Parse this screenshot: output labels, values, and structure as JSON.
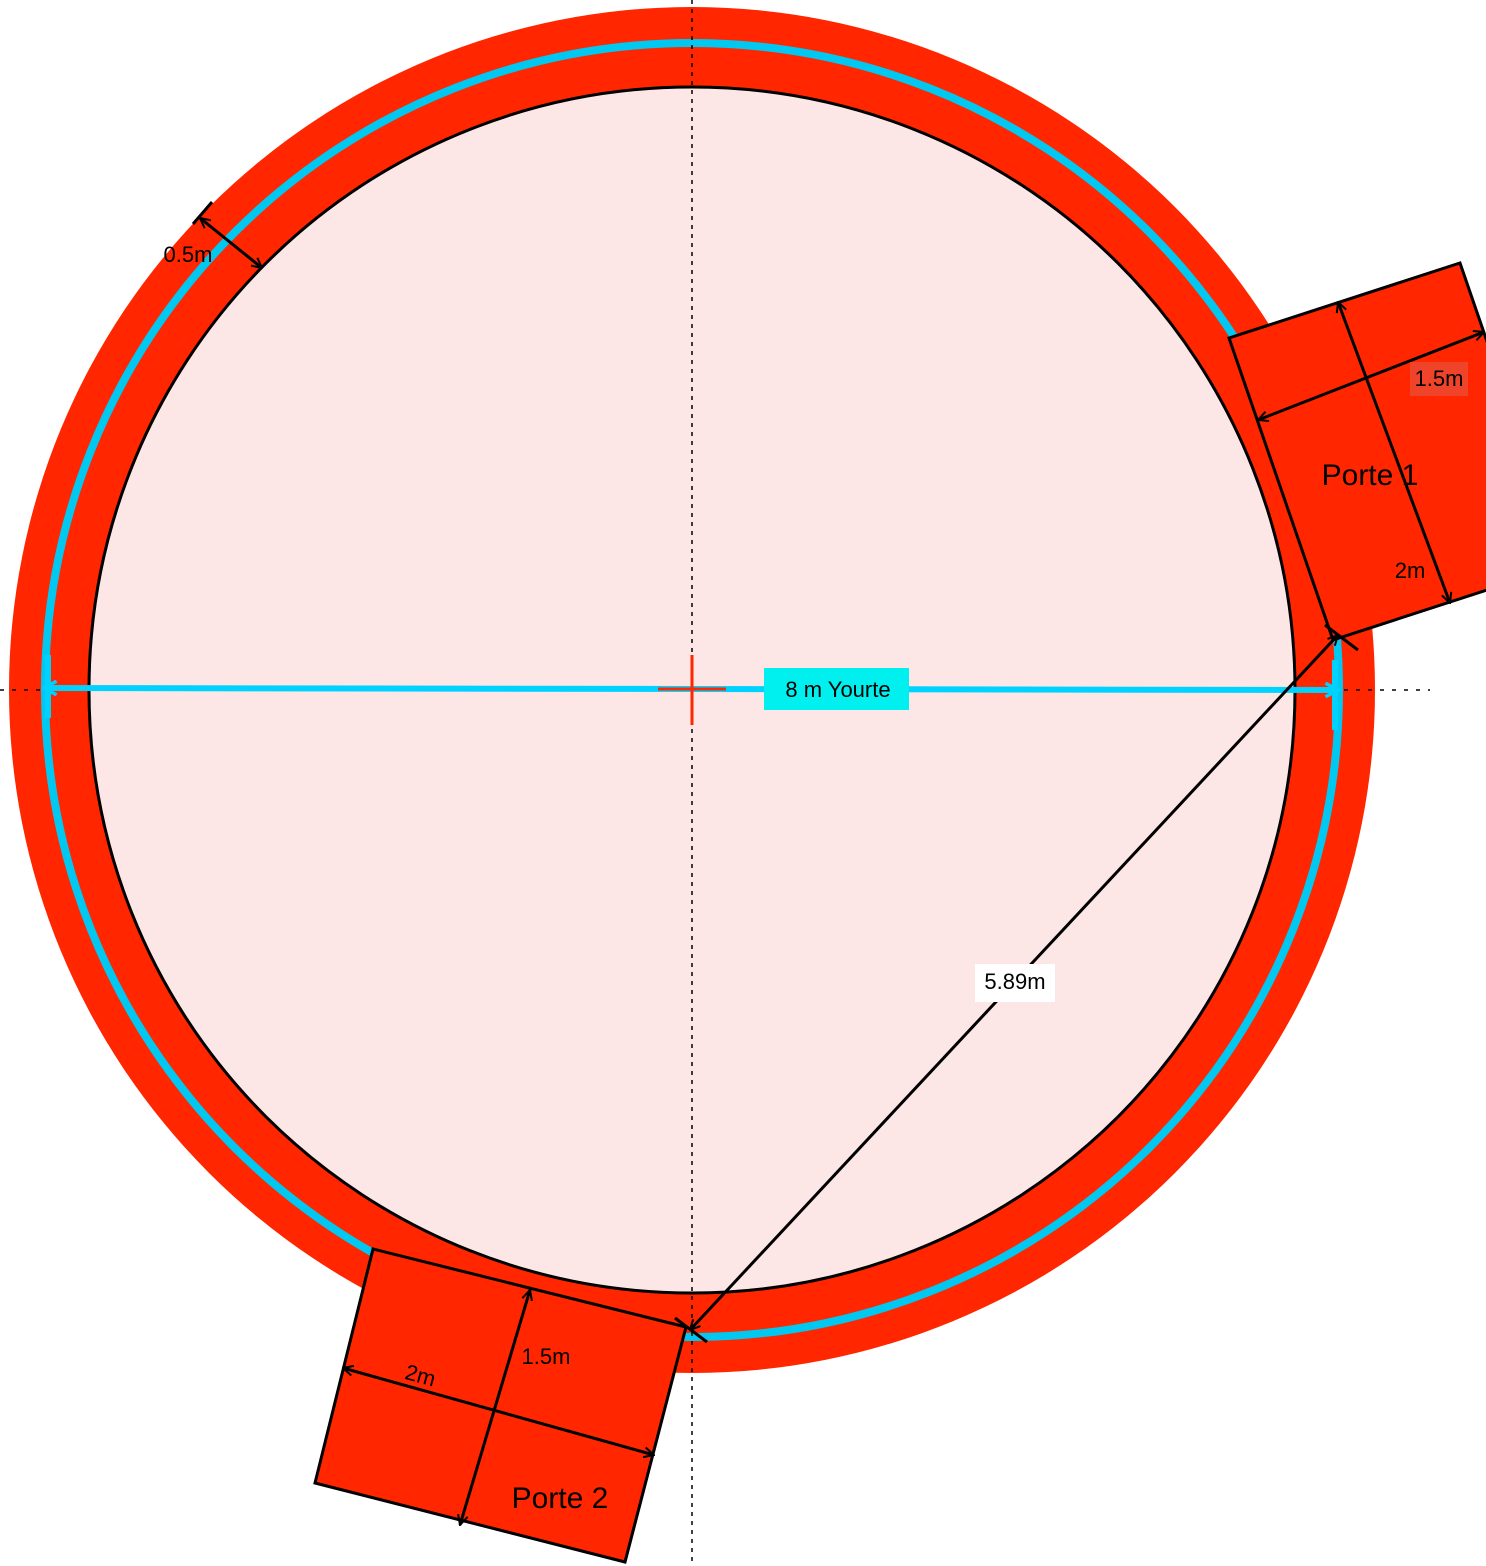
{
  "diagram": {
    "yurt_label": "8 m Yourte",
    "wall_label": "0.5m",
    "radius_label": "5.89m",
    "doors": [
      {
        "name": "Porte  1",
        "width_label": "1.5m",
        "depth_label": "2m"
      },
      {
        "name": "Porte  2",
        "width_label": "1.5m",
        "depth_label": "2m"
      }
    ]
  }
}
